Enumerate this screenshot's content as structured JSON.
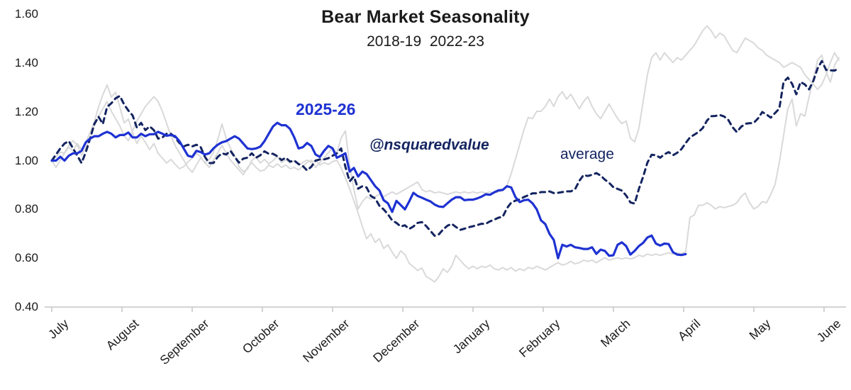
{
  "title": "Bear Market Seasonality",
  "subtitle": "2018-19  2022-23",
  "annotations": {
    "current_label": "2025-26",
    "watermark": "@nsquaredvalue",
    "average_label": "average"
  },
  "colors": {
    "current": "#1e32d2",
    "average": "#142460",
    "historical": "#d9d9d9",
    "axis": "#c6c6c6",
    "text": "#1a1a1a"
  },
  "chart_data": {
    "type": "line",
    "title": "Bear Market Seasonality",
    "subtitle_years": [
      "2018-19",
      "2022-23"
    ],
    "x_unit": "months since July 1",
    "x_tick_labels": [
      "July",
      "August",
      "September",
      "October",
      "November",
      "December",
      "January",
      "February",
      "March",
      "April",
      "May",
      "June"
    ],
    "y_ticks": [
      1.6,
      1.4,
      1.2,
      1.0,
      0.8,
      0.6,
      0.4
    ],
    "ylim": [
      0.4,
      1.6
    ],
    "grid": false,
    "legend": "inline text annotations",
    "series": [
      {
        "name": "2018-19",
        "style": "solid",
        "color_key": "historical",
        "width": 2,
        "x0": 0,
        "dx": 0.0606,
        "values": [
          1.0,
          1.015,
          1.035,
          1.03,
          1.055,
          1.04,
          1.07,
          1.045,
          1.075,
          1.115,
          1.16,
          1.22,
          1.27,
          1.31,
          1.26,
          1.28,
          1.22,
          1.155,
          1.17,
          1.115,
          1.07,
          1.1,
          1.075,
          1.045,
          1.07,
          1.03,
          1.01,
          0.99,
          1.005,
          0.985,
          0.967,
          0.975,
          0.995,
          1.01,
          1.03,
          1.015,
          0.99,
          1.005,
          1.035,
          1.085,
          1.15,
          1.09,
          1.05,
          1.02,
          0.975,
          0.955,
          0.965,
          1.0,
          1.015,
          0.99,
          1.005,
          0.987,
          1.0,
          1.017,
          0.992,
          1.003,
          0.99,
          1.0,
          0.982,
          0.992,
          1.002,
          0.992,
          1.002,
          0.982,
          0.992,
          0.984,
          0.996,
          1.002,
          0.97,
          0.93,
          0.885,
          0.835,
          0.785,
          0.73,
          0.68,
          0.7,
          0.665,
          0.68,
          0.64,
          0.655,
          0.625,
          0.6,
          0.63,
          0.615,
          0.58,
          0.565,
          0.55,
          0.56,
          0.525,
          0.515,
          0.503,
          0.525,
          0.557,
          0.542,
          0.567,
          0.612,
          0.592,
          0.572,
          0.557,
          0.567,
          0.557,
          0.567,
          0.562,
          0.572,
          0.557,
          0.552,
          0.562,
          0.552,
          0.562,
          0.547,
          0.557,
          0.55,
          0.562,
          0.557,
          0.567,
          0.56,
          0.552,
          0.562,
          0.572,
          0.582,
          0.572,
          0.577,
          0.587,
          0.577,
          0.582,
          0.592,
          0.587,
          0.592,
          0.582,
          0.592,
          0.602,
          0.592,
          0.597,
          0.602,
          0.597,
          0.602,
          0.597,
          0.602,
          0.612,
          0.607,
          0.617,
          0.612,
          0.617,
          0.612,
          0.617,
          0.622,
          0.617,
          0.622,
          0.619,
          0.627,
          0.767,
          0.777,
          0.817,
          0.817,
          0.827,
          0.817,
          0.802,
          0.812,
          0.807,
          0.812,
          0.817,
          0.827,
          0.852,
          0.867,
          0.827,
          0.802,
          0.812,
          0.832,
          0.827,
          0.862,
          0.902,
          0.992,
          1.102,
          1.212,
          1.252,
          1.142,
          1.192,
          1.182,
          1.262,
          1.332,
          1.412,
          1.432,
          1.362,
          1.322,
          1.392,
          1.422
        ]
      },
      {
        "name": "2022-23",
        "style": "solid",
        "color_key": "historical",
        "width": 2,
        "x0": 0,
        "dx": 0.0606,
        "values": [
          1.0,
          0.972,
          1.002,
          1.032,
          1.062,
          1.082,
          1.062,
          1.022,
          1.052,
          1.092,
          1.142,
          1.182,
          1.212,
          1.242,
          1.202,
          1.172,
          1.142,
          1.102,
          1.082,
          1.122,
          1.162,
          1.192,
          1.222,
          1.242,
          1.262,
          1.242,
          1.202,
          1.152,
          1.102,
          1.062,
          1.032,
          1.002,
          0.972,
          0.952,
          0.982,
          1.012,
          0.992,
          0.972,
          1.002,
          1.032,
          1.062,
          1.032,
          1.002,
          0.982,
          0.962,
          0.942,
          0.972,
          0.992,
          0.972,
          0.957,
          0.962,
          0.982,
          0.972,
          0.987,
          0.972,
          0.982,
          0.967,
          0.972,
          0.962,
          0.977,
          0.992,
          1.002,
          0.972,
          0.992,
          1.012,
          1.032,
          1.052,
          1.032,
          1.092,
          1.122,
          0.982,
          0.882,
          0.802,
          0.832,
          0.852,
          0.842,
          0.852,
          0.862,
          0.852,
          0.862,
          0.872,
          0.862,
          0.872,
          0.882,
          0.892,
          0.902,
          0.912,
          0.882,
          0.872,
          0.877,
          0.867,
          0.872,
          0.867,
          0.862,
          0.867,
          0.872,
          0.867,
          0.872,
          0.867,
          0.872,
          0.867,
          0.872,
          0.867,
          0.872,
          0.867,
          0.872,
          0.877,
          0.897,
          0.947,
          1.007,
          1.067,
          1.127,
          1.177,
          1.172,
          1.202,
          1.202,
          1.222,
          1.252,
          1.222,
          1.262,
          1.282,
          1.252,
          1.272,
          1.242,
          1.212,
          1.242,
          1.262,
          1.222,
          1.192,
          1.172,
          1.202,
          1.232,
          1.202,
          1.172,
          1.152,
          1.162,
          1.092,
          1.077,
          1.132,
          1.242,
          1.352,
          1.422,
          1.442,
          1.412,
          1.442,
          1.422,
          1.402,
          1.422,
          1.412,
          1.432,
          1.452,
          1.472,
          1.502,
          1.532,
          1.552,
          1.532,
          1.502,
          1.522,
          1.512,
          1.482,
          1.452,
          1.442,
          1.472,
          1.502,
          1.492,
          1.482,
          1.462,
          1.452,
          1.432,
          1.422,
          1.412,
          1.402,
          1.382,
          1.392,
          1.402,
          1.392,
          1.382,
          1.352,
          1.332,
          1.312,
          1.292,
          1.312,
          1.352,
          1.402,
          1.442,
          1.412
        ]
      },
      {
        "name": "average",
        "style": "dashed",
        "color_key": "average",
        "width": 3,
        "x0": 0,
        "dx": 0.0606,
        "values": [
          1.0,
          1.025,
          1.05,
          1.07,
          1.08,
          1.05,
          1.02,
          0.99,
          1.035,
          1.09,
          1.15,
          1.18,
          1.15,
          1.22,
          1.235,
          1.255,
          1.265,
          1.23,
          1.205,
          1.185,
          1.135,
          1.155,
          1.125,
          1.14,
          1.125,
          1.09,
          1.095,
          1.11,
          1.11,
          1.095,
          1.072,
          1.058,
          1.065,
          1.058,
          1.065,
          1.055,
          1.015,
          0.99,
          0.99,
          1.015,
          1.03,
          1.025,
          1.04,
          1.015,
          0.992,
          1.008,
          1.012,
          1.03,
          1.012,
          1.022,
          1.038,
          1.028,
          1.028,
          1.018,
          1.002,
          1.012,
          0.996,
          1.0,
          0.986,
          0.978,
          0.96,
          0.975,
          1.0,
          1.005,
          1.005,
          1.01,
          1.02,
          1.03,
          1.05,
          0.975,
          0.915,
          0.935,
          0.885,
          0.895,
          0.89,
          0.855,
          0.845,
          0.815,
          0.8,
          0.78,
          0.755,
          0.745,
          0.73,
          0.735,
          0.72,
          0.73,
          0.745,
          0.748,
          0.732,
          0.712,
          0.692,
          0.698,
          0.718,
          0.733,
          0.741,
          0.728,
          0.716,
          0.721,
          0.727,
          0.731,
          0.736,
          0.741,
          0.741,
          0.751,
          0.758,
          0.766,
          0.77,
          0.805,
          0.828,
          0.836,
          0.841,
          0.851,
          0.858,
          0.866,
          0.866,
          0.871,
          0.871,
          0.874,
          0.867,
          0.868,
          0.871,
          0.874,
          0.874,
          0.883,
          0.917,
          0.941,
          0.937,
          0.942,
          0.949,
          0.939,
          0.922,
          0.909,
          0.891,
          0.884,
          0.877,
          0.857,
          0.829,
          0.824,
          0.884,
          0.934,
          0.992,
          1.024,
          1.022,
          1.012,
          1.026,
          1.035,
          1.022,
          1.032,
          1.047,
          1.072,
          1.095,
          1.106,
          1.117,
          1.133,
          1.164,
          1.182,
          1.183,
          1.187,
          1.181,
          1.167,
          1.137,
          1.117,
          1.138,
          1.151,
          1.153,
          1.155,
          1.173,
          1.199,
          1.189,
          1.176,
          1.195,
          1.213,
          1.322,
          1.34,
          1.315,
          1.272,
          1.322,
          1.312,
          1.292,
          1.327,
          1.378,
          1.408,
          1.372,
          1.37,
          1.369,
          1.378
        ]
      },
      {
        "name": "2025-26",
        "style": "solid",
        "color_key": "current",
        "width": 3.2,
        "x0": 0,
        "dx": 0.0606,
        "values": [
          1.0,
          1.0,
          1.016,
          1.0,
          1.02,
          1.03,
          1.03,
          1.04,
          1.075,
          1.09,
          1.1,
          1.1,
          1.11,
          1.118,
          1.11,
          1.095,
          1.105,
          1.105,
          1.115,
          1.095,
          1.095,
          1.11,
          1.1,
          1.108,
          1.108,
          1.118,
          1.11,
          1.102,
          1.105,
          1.1,
          1.08,
          1.05,
          1.02,
          1.015,
          1.04,
          1.035,
          1.025,
          1.03,
          1.05,
          1.065,
          1.075,
          1.08,
          1.09,
          1.1,
          1.09,
          1.07,
          1.05,
          1.047,
          1.05,
          1.057,
          1.08,
          1.11,
          1.14,
          1.155,
          1.145,
          1.145,
          1.13,
          1.095,
          1.05,
          1.055,
          1.072,
          1.06,
          1.025,
          1.015,
          1.04,
          1.06,
          1.05,
          1.012,
          1.02,
          1.03,
          0.955,
          0.97,
          0.935,
          0.955,
          0.945,
          0.92,
          0.895,
          0.878,
          0.838,
          0.825,
          0.79,
          0.835,
          0.818,
          0.8,
          0.832,
          0.868,
          0.855,
          0.848,
          0.84,
          0.833,
          0.82,
          0.812,
          0.81,
          0.825,
          0.84,
          0.85,
          0.85,
          0.838,
          0.84,
          0.84,
          0.845,
          0.852,
          0.862,
          0.86,
          0.87,
          0.878,
          0.88,
          0.895,
          0.89,
          0.85,
          0.83,
          0.838,
          0.84,
          0.825,
          0.8,
          0.755,
          0.74,
          0.7,
          0.675,
          0.6,
          0.655,
          0.648,
          0.655,
          0.645,
          0.642,
          0.638,
          0.638,
          0.645,
          0.618,
          0.635,
          0.63,
          0.61,
          0.612,
          0.655,
          0.665,
          0.65,
          0.615,
          0.63,
          0.65,
          0.663,
          0.685,
          0.693,
          0.66,
          0.652,
          0.66,
          0.658,
          0.625,
          0.615,
          0.613,
          0.617
        ]
      }
    ]
  }
}
